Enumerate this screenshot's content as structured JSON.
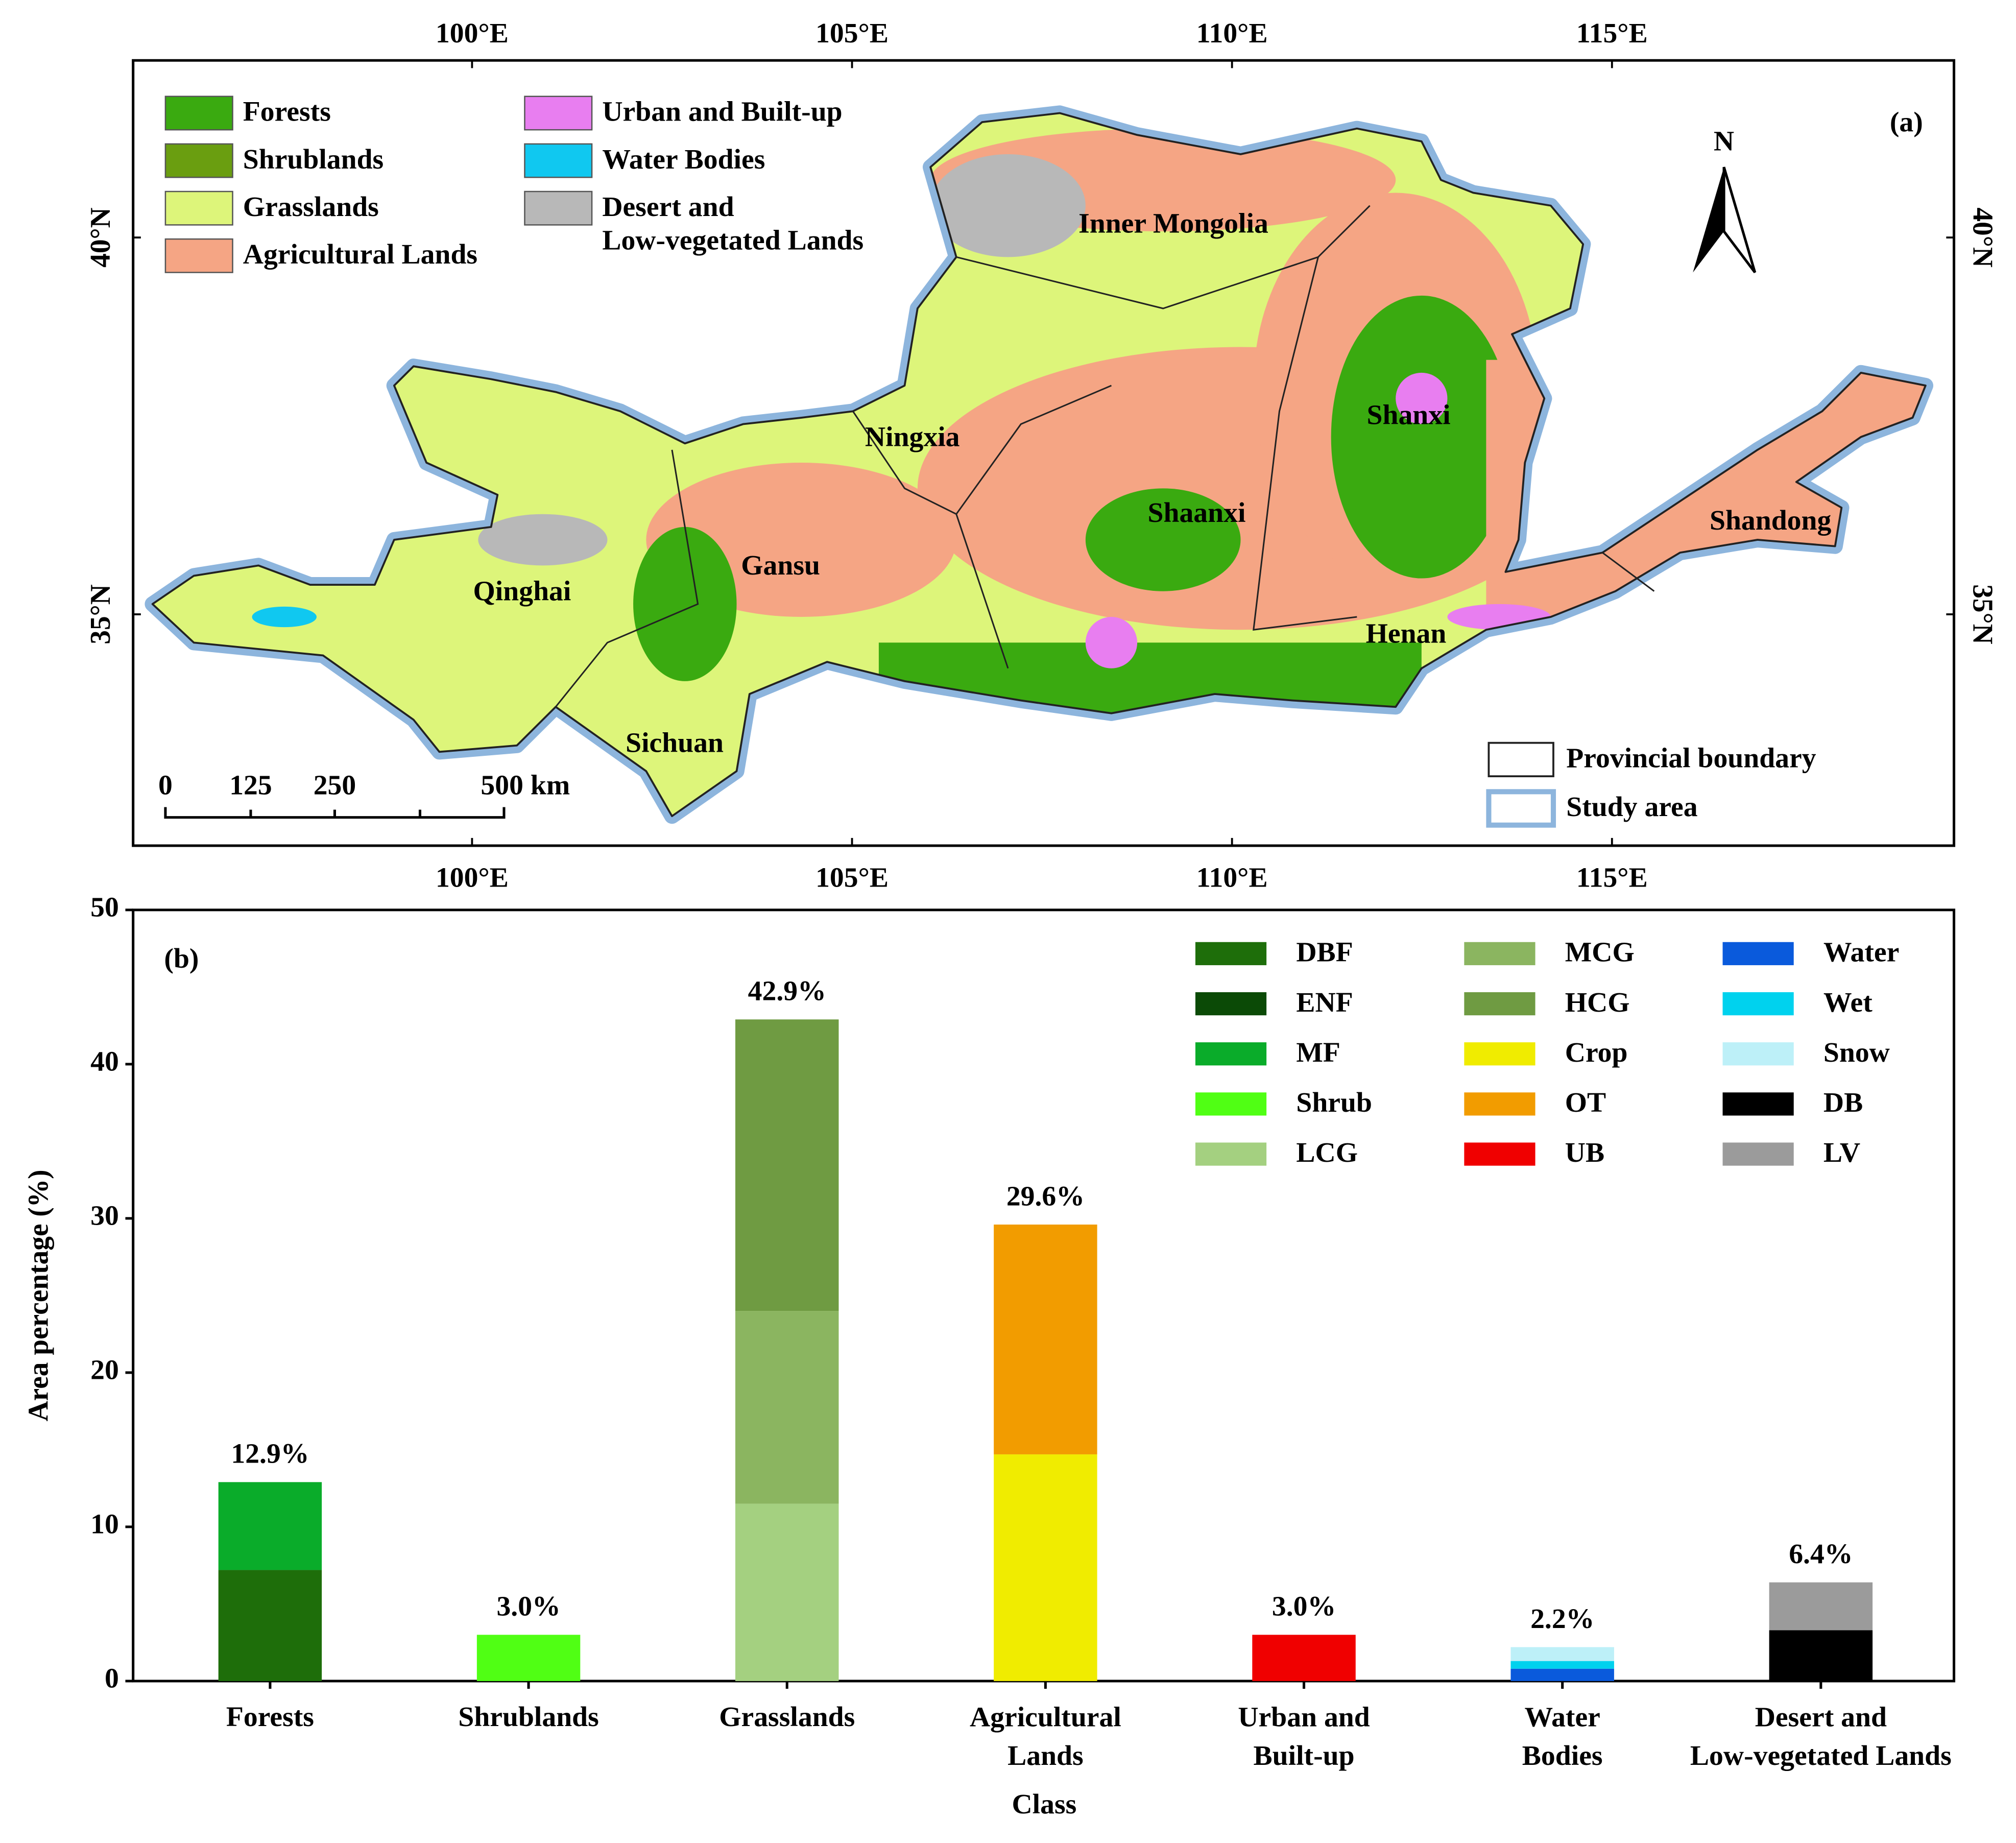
{
  "map": {
    "panel_label": "(a)",
    "xlim": [
      95.54,
      119.5
    ],
    "xticks": [
      {
        "value": 100,
        "label": "100°E"
      },
      {
        "value": 105,
        "label": "105°E"
      },
      {
        "value": 110,
        "label": "110°E"
      },
      {
        "value": 115,
        "label": "115°E"
      }
    ],
    "ylim": [
      31.93,
      42.35
    ],
    "yticks": [
      {
        "value": 35,
        "label": "35°N"
      },
      {
        "value": 40,
        "label": "40°N"
      }
    ],
    "legend": [
      {
        "label": "Forests",
        "color": "#3aaa10"
      },
      {
        "label": "Shrublands",
        "color": "#6a9e10"
      },
      {
        "label": "Grasslands",
        "color": "#ddf57a"
      },
      {
        "label": "Agricultural Lands",
        "color": "#f5a584"
      },
      {
        "label": "Urban and Built-up",
        "color": "#e87ef0"
      },
      {
        "label": "Water Bodies",
        "color": "#10c8f0"
      },
      {
        "label": "Desert and\nLow-vegetated Lands",
        "color": "#b8b8b8"
      }
    ],
    "provinces": [
      "Inner Mongolia",
      "Ningxia",
      "Shanxi",
      "Shaanxi",
      "Shandong",
      "Gansu",
      "Qinghai",
      "Henan",
      "Sichuan"
    ],
    "north": "N",
    "scale_bar": [
      "0",
      "125",
      "250",
      "500 km"
    ],
    "boundary_legend": [
      "Provincial boundary",
      "Study area"
    ]
  },
  "chart_data": {
    "type": "bar",
    "stacked": true,
    "panel_label": "(b)",
    "xlabel": "Class",
    "ylabel": "Area percentage (%)",
    "categories": [
      "Forests",
      "Shrublands",
      "Grasslands",
      "Agricultural\nLands",
      "Urban and\nBuilt-up",
      "Water\nBodies",
      "Desert and\nLow-vegetated Lands"
    ],
    "ylim": [
      0,
      50
    ],
    "yticks": [
      0,
      10,
      20,
      30,
      40,
      50
    ],
    "series": [
      {
        "name": "DBF",
        "color": "#1e6e0a",
        "values": [
          7.2,
          null,
          null,
          null,
          null,
          null,
          null
        ]
      },
      {
        "name": "ENF",
        "color": "#0b4a06",
        "values": [
          null,
          null,
          null,
          null,
          null,
          null,
          null
        ]
      },
      {
        "name": "MF",
        "color": "#0aac2a",
        "values": [
          5.7,
          null,
          null,
          null,
          null,
          null,
          null
        ]
      },
      {
        "name": "Shrub",
        "color": "#50ff14",
        "values": [
          null,
          3.0,
          null,
          null,
          null,
          null,
          null
        ]
      },
      {
        "name": "LCG",
        "color": "#a4d080",
        "values": [
          null,
          null,
          11.5,
          null,
          null,
          null,
          null
        ]
      },
      {
        "name": "MCG",
        "color": "#8bb560",
        "values": [
          null,
          null,
          12.5,
          null,
          null,
          null,
          null
        ]
      },
      {
        "name": "HCG",
        "color": "#6f9b42",
        "values": [
          null,
          null,
          18.9,
          null,
          null,
          null,
          null
        ]
      },
      {
        "name": "Crop",
        "color": "#f0ec00",
        "values": [
          null,
          null,
          null,
          14.7,
          null,
          null,
          null
        ]
      },
      {
        "name": "OT",
        "color": "#f29c00",
        "values": [
          null,
          null,
          null,
          14.9,
          null,
          null,
          null
        ]
      },
      {
        "name": "UB",
        "color": "#f00000",
        "values": [
          null,
          null,
          null,
          null,
          3.0,
          null,
          null
        ]
      },
      {
        "name": "Water",
        "color": "#0a5adc",
        "values": [
          null,
          null,
          null,
          null,
          null,
          0.8,
          null
        ]
      },
      {
        "name": "Wet",
        "color": "#00d2ee",
        "values": [
          null,
          null,
          null,
          null,
          null,
          0.5,
          null
        ]
      },
      {
        "name": "Snow",
        "color": "#bdf0f8",
        "values": [
          null,
          null,
          null,
          null,
          null,
          0.9,
          null
        ]
      },
      {
        "name": "DB",
        "color": "#000000",
        "values": [
          null,
          null,
          null,
          null,
          null,
          null,
          3.3
        ]
      },
      {
        "name": "LV",
        "color": "#9b9b9b",
        "values": [
          null,
          null,
          null,
          null,
          null,
          null,
          3.1
        ]
      }
    ],
    "totals": [
      12.9,
      3.0,
      42.9,
      29.6,
      3.0,
      2.2,
      6.4
    ],
    "total_labels": [
      "12.9%",
      "3.0%",
      "42.9%",
      "29.6%",
      "3.0%",
      "2.2%",
      "6.4%"
    ]
  }
}
